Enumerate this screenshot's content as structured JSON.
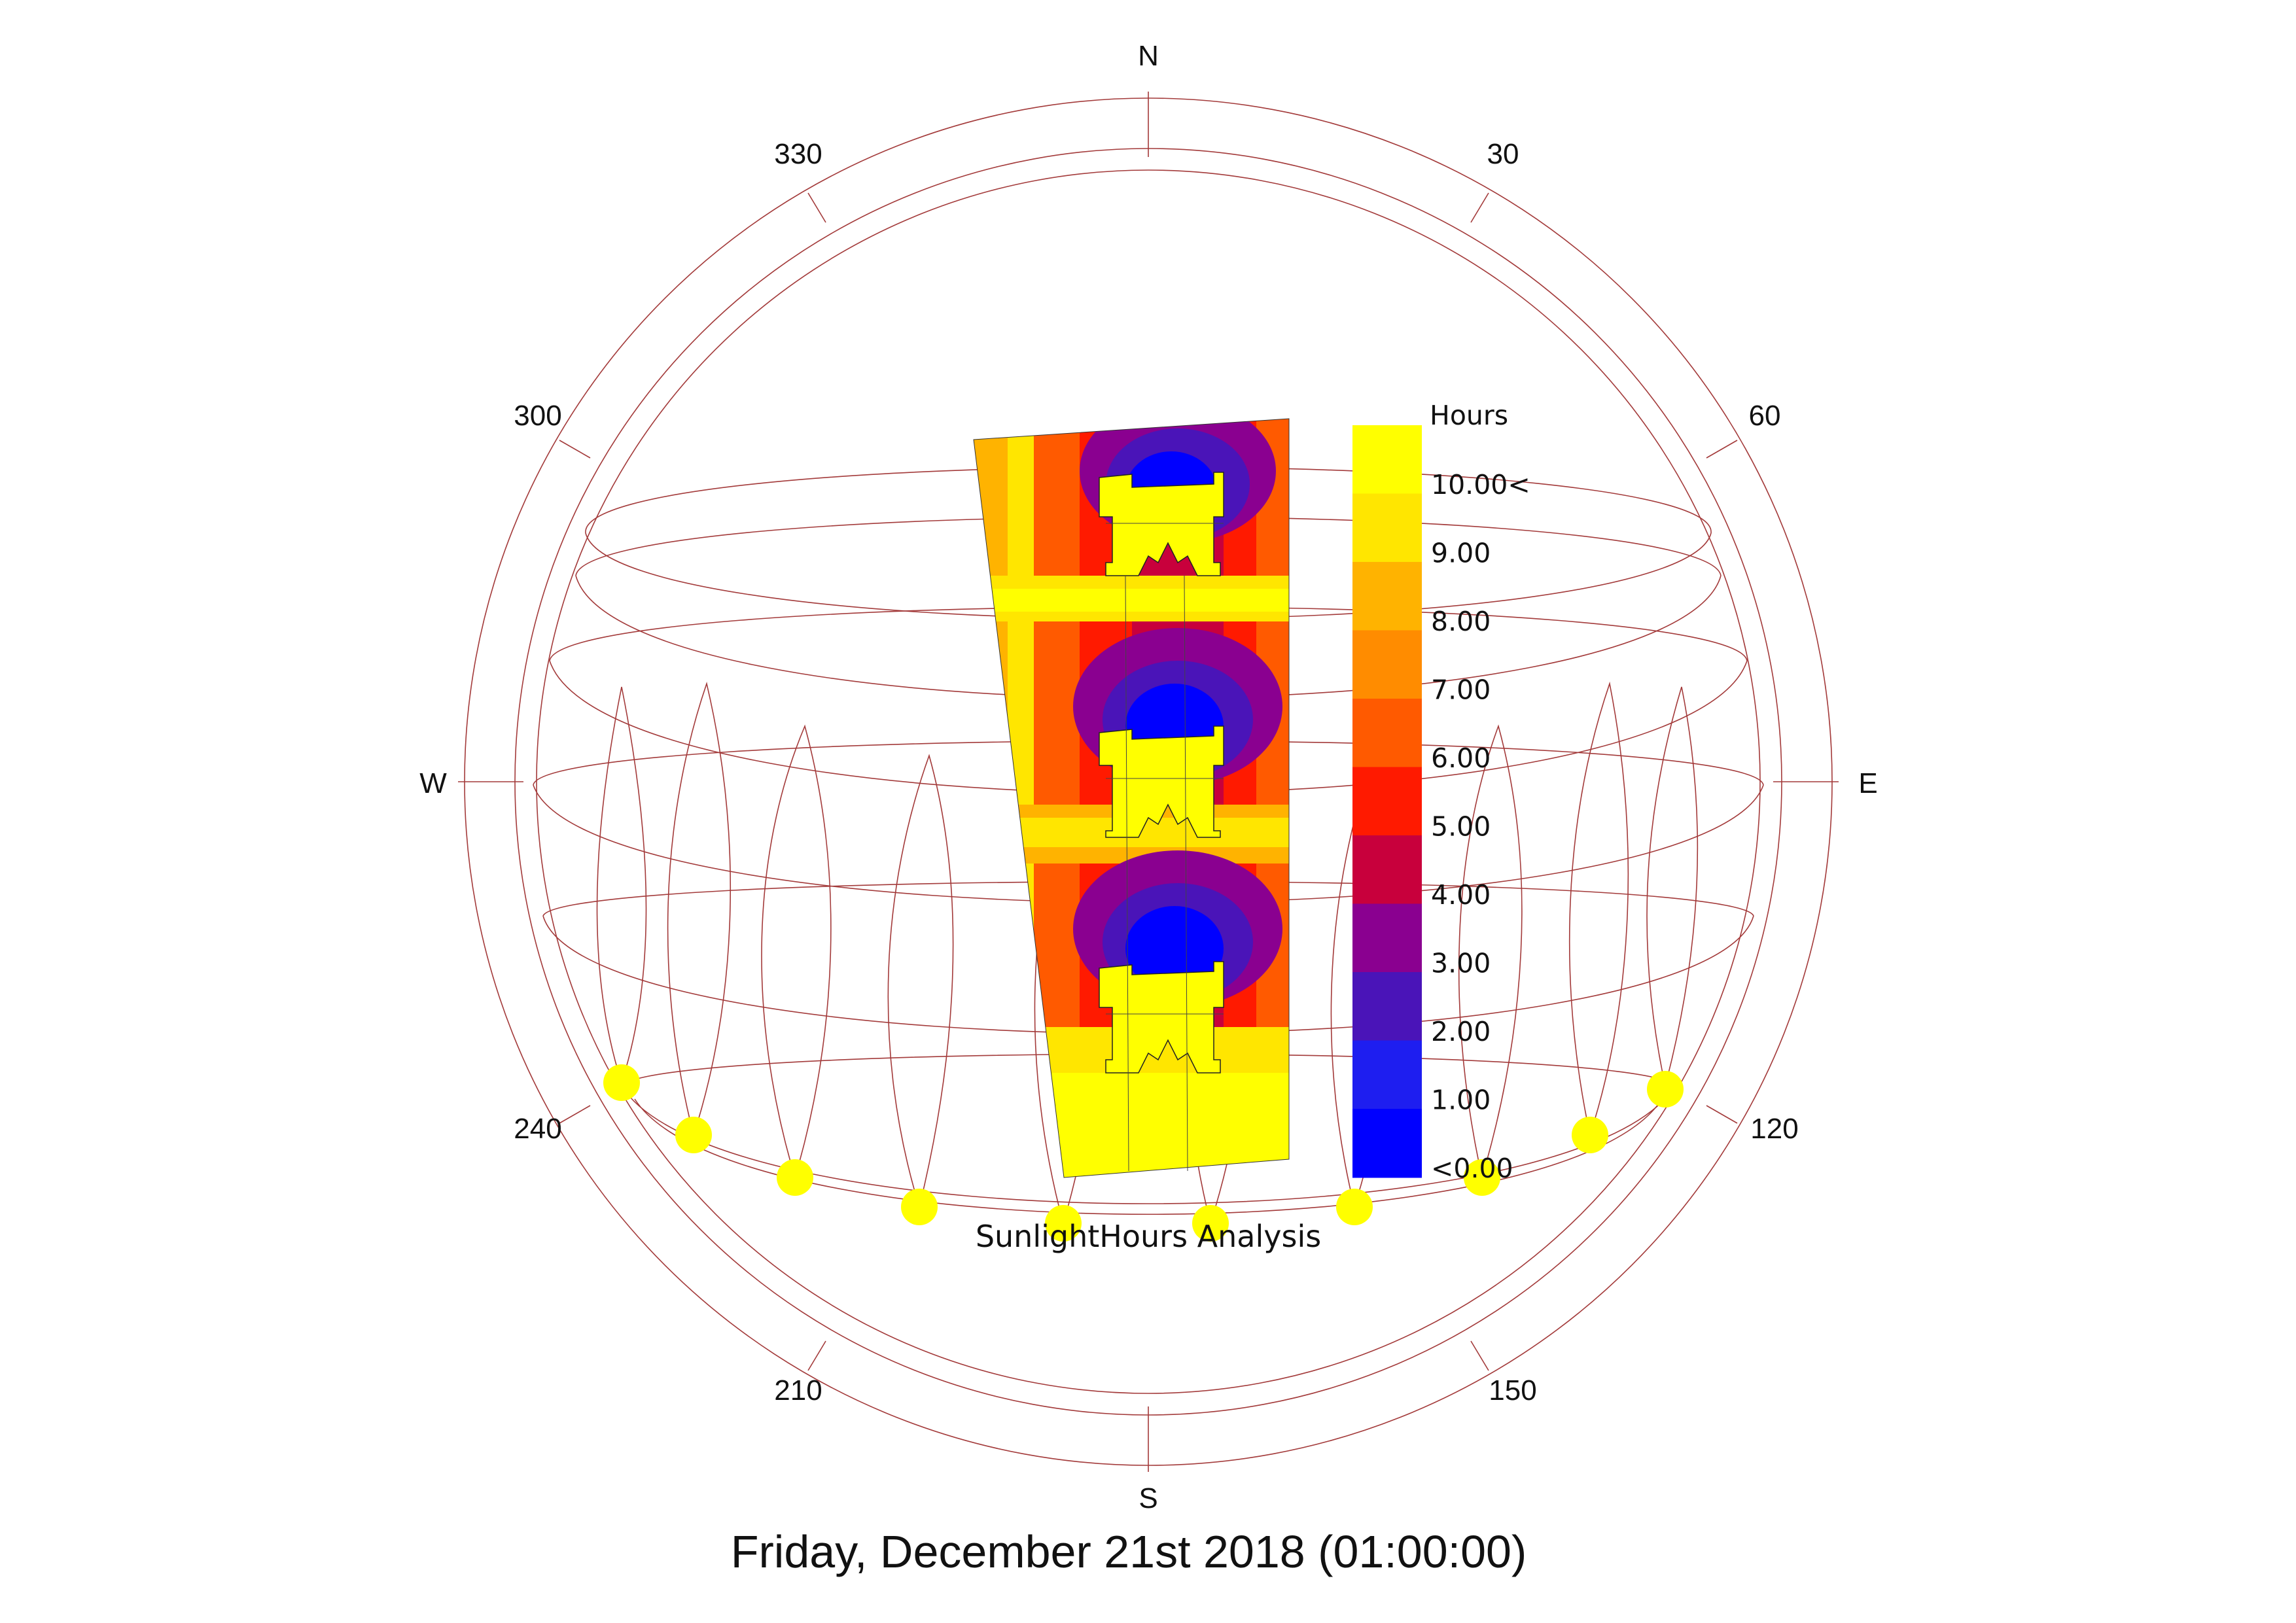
{
  "compass": {
    "north": "N",
    "south": "S",
    "east": "E",
    "west": "W",
    "deg30": "30",
    "deg60": "60",
    "deg120": "120",
    "deg150": "150",
    "deg210": "210",
    "deg240": "240",
    "deg300": "300",
    "deg330": "330"
  },
  "legend": {
    "title": "Hours",
    "labels": [
      "10.00<",
      "9.00",
      "8.00",
      "7.00",
      "6.00",
      "5.00",
      "4.00",
      "3.00",
      "2.00",
      "1.00",
      "<0.00"
    ],
    "colors": [
      "#ffff00",
      "#ffe600",
      "#ffb300",
      "#ff8c00",
      "#ff5a00",
      "#ff1a00",
      "#c8003c",
      "#8a0090",
      "#4a14b8",
      "#1e1ef0",
      "#0000ff"
    ]
  },
  "analysis_label": "SunlightHours Analysis",
  "date_label": "Friday, December 21st 2018 (01:00:00)",
  "colors": {
    "sun_marker": "#ffff00",
    "sky_lines": "#a33a3a"
  }
}
